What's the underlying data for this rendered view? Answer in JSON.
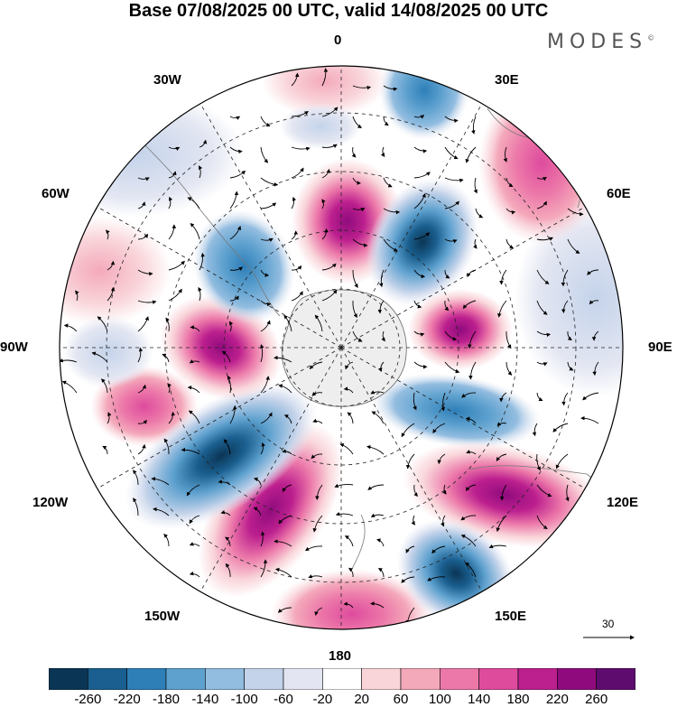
{
  "title": "Base 07/08/2025 00 UTC, valid 14/08/2025 00 UTC",
  "logo": {
    "text": "MODES",
    "mark": "©"
  },
  "longitudes": {
    "top": "0",
    "bottom": "180",
    "left": "90W",
    "right": "90E",
    "nw_upper": "30W",
    "nw_lower": "60W",
    "ne_upper": "30E",
    "ne_lower": "60E",
    "sw_upper": "120W",
    "sw_lower": "150W",
    "se_upper": "120E",
    "se_lower": "150E"
  },
  "vector_reference": {
    "label": "30"
  },
  "colorbar": {
    "ticks": [
      "-260",
      "-220",
      "-180",
      "-140",
      "-100",
      "-60",
      "-20",
      "20",
      "60",
      "100",
      "140",
      "180",
      "220",
      "260"
    ],
    "colors": [
      "#0b3555",
      "#1a5f8f",
      "#2e7fb8",
      "#5ea1cf",
      "#93bde0",
      "#c4d3ea",
      "#e3e6f2",
      "#ffffff",
      "#f9d5da",
      "#f4a9bb",
      "#ec78a9",
      "#de4b9d",
      "#bc1f8e",
      "#8f0b7d",
      "#5e0d6e"
    ]
  },
  "anomaly_centers": [
    {
      "lon": 0,
      "sign": "positive",
      "value": 200
    },
    {
      "lon": 30,
      "sign": "negative",
      "value": -240
    },
    {
      "lon": 75,
      "sign": "positive",
      "value": 180
    },
    {
      "lon": 105,
      "sign": "negative",
      "value": -120
    },
    {
      "lon": 125,
      "sign": "positive",
      "value": 210
    },
    {
      "lon": 150,
      "sign": "negative",
      "value": -230
    },
    {
      "lon": -150,
      "sign": "positive",
      "value": 180
    },
    {
      "lon": -125,
      "sign": "negative",
      "value": -180
    },
    {
      "lon": -90,
      "sign": "positive",
      "value": 170
    },
    {
      "lon": -55,
      "sign": "negative",
      "value": -160
    }
  ]
}
